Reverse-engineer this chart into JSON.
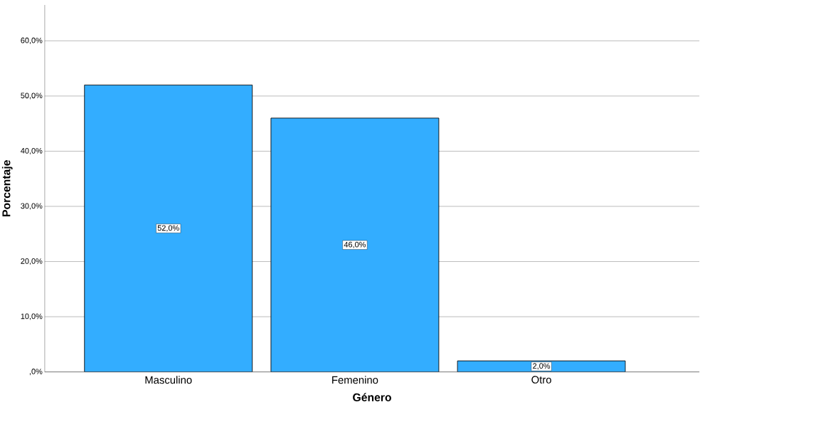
{
  "chart_data": {
    "type": "bar",
    "xlabel": "Género",
    "ylabel": "Porcentaje",
    "categories": [
      "Masculino",
      "Femenino",
      "Otro"
    ],
    "values": [
      52,
      46,
      2
    ],
    "value_labels": [
      "52,0%",
      "46,0%",
      "2,0%"
    ],
    "color": "#33adff",
    "ylim": [
      0,
      66.5
    ],
    "yticks": [
      {
        "value": 0,
        "label": ",0%"
      },
      {
        "value": 10,
        "label": "10,0%"
      },
      {
        "value": 20,
        "label": "20,0%"
      },
      {
        "value": 30,
        "label": "30,0%"
      },
      {
        "value": 40,
        "label": "40,0%"
      },
      {
        "value": 50,
        "label": "50,0%"
      },
      {
        "value": 60,
        "label": "60,0%"
      }
    ],
    "grid": "y"
  }
}
